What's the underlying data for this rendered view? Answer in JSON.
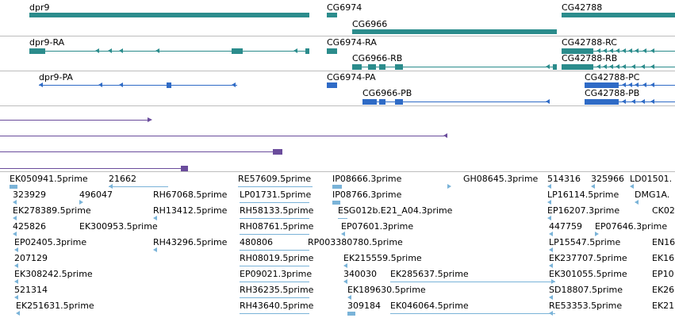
{
  "colors": {
    "gene": "#2b8c8c",
    "transcript_ra": "#2b8c8c",
    "transcript_pa": "#2f6bc6",
    "alignment": "#6a4c9c",
    "est": "#7ab3d8",
    "separator": "#bdbdbd"
  },
  "genes": [
    "dpr9",
    "CG6974",
    "CG42788",
    "CG6966"
  ],
  "transcripts": [
    "dpr9-RA",
    "CG6974-RA",
    "CG42788-RC",
    "CG6966-RB",
    "CG42788-RB"
  ],
  "proteins": [
    "dpr9-PA",
    "CG6974-PA",
    "CG42788-PC",
    "CG6966-PB",
    "CG42788-PB"
  ],
  "ests": {
    "row1": [
      "EK050941.5prime",
      "21662",
      "RE57609.5prime",
      "IP08666.3prime",
      "GH08645.3prime",
      "514316",
      "325966",
      "LD01501."
    ],
    "row2": [
      "323929",
      "496047",
      "RH67068.5prime",
      "LP01731.5prime",
      "IP08766.3prime",
      "LP16114.5prime",
      "DMG1A."
    ],
    "row3": [
      "EK278389.5prime",
      "RH13412.5prime",
      "RH58133.5prime",
      "ESG012b.E21_A04.3prime",
      "EP16207.3prime",
      "CK02"
    ],
    "row4": [
      "425826",
      "EK300953.5prime",
      "RH08761.5prime",
      "EP07601.3prime",
      "447759",
      "EP07646.3prime"
    ],
    "row5": [
      "EP02405.3prime",
      "RH43296.5prime",
      "480806",
      "RP003380780.5prime",
      "LP15547.5prime",
      "EN16"
    ],
    "row6": [
      "207129",
      "RH08019.5prime",
      "EK215559.5prime",
      "EK237707.5prime",
      "EK16"
    ],
    "row7": [
      "EK308242.5prime",
      "EP09021.3prime",
      "340030",
      "EK285637.5prime",
      "EK301055.5prime",
      "EP10"
    ],
    "row8": [
      "521314",
      "RH36235.5prime",
      "EK189630.5prime",
      "SD18807.5prime",
      "EK26"
    ],
    "row9": [
      "EK251631.5prime",
      "RH43640.5prime",
      "309184",
      "EK046064.5prime",
      "RE53353.5prime",
      "EK21"
    ]
  }
}
